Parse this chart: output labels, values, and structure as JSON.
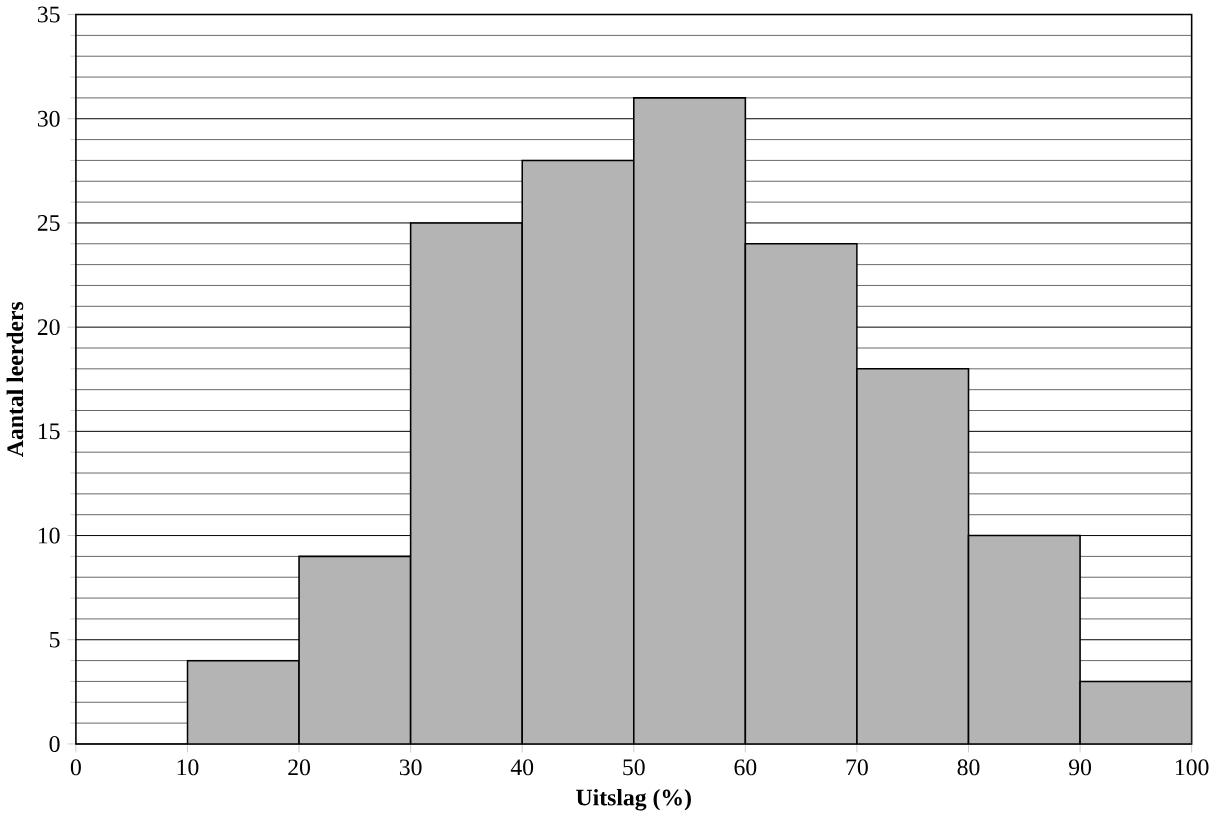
{
  "chart_data": {
    "type": "histogram",
    "xlabel": "Uitslag (%)",
    "ylabel": "Aantal leerders",
    "bins": [
      10,
      20,
      30,
      40,
      50,
      60,
      70,
      80,
      90,
      100
    ],
    "values": [
      4,
      9,
      25,
      28,
      31,
      24,
      18,
      10,
      3
    ],
    "color": "#b4b4b4",
    "xlim": [
      0,
      100
    ],
    "ylim": [
      0,
      35
    ],
    "xticks": [
      0,
      10,
      20,
      30,
      40,
      50,
      60,
      70,
      80,
      90,
      100
    ],
    "yticks": [
      0,
      5,
      10,
      15,
      20,
      25,
      30,
      35
    ],
    "grid": "y"
  }
}
